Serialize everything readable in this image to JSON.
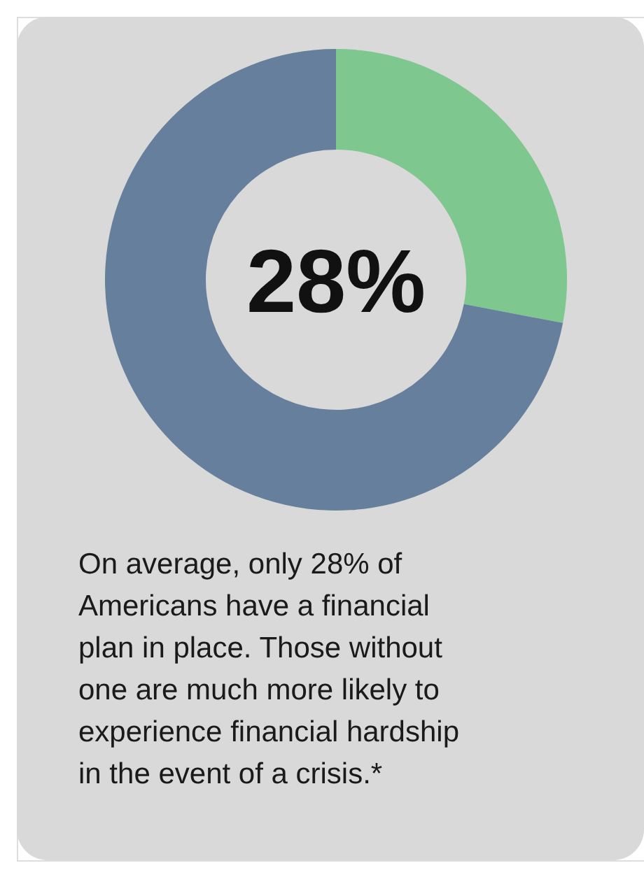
{
  "chart_data": {
    "type": "donut",
    "categories": [
      null,
      null
    ],
    "values": [
      28,
      72
    ],
    "colors": [
      "#7ec78f",
      "#667f9d"
    ],
    "annotations": [
      "28%",
      "On average, only 28% of Americans have a financial plan in place. Those without one are much more likely to experience financial hardship in the event of a crisis.*"
    ]
  }
}
